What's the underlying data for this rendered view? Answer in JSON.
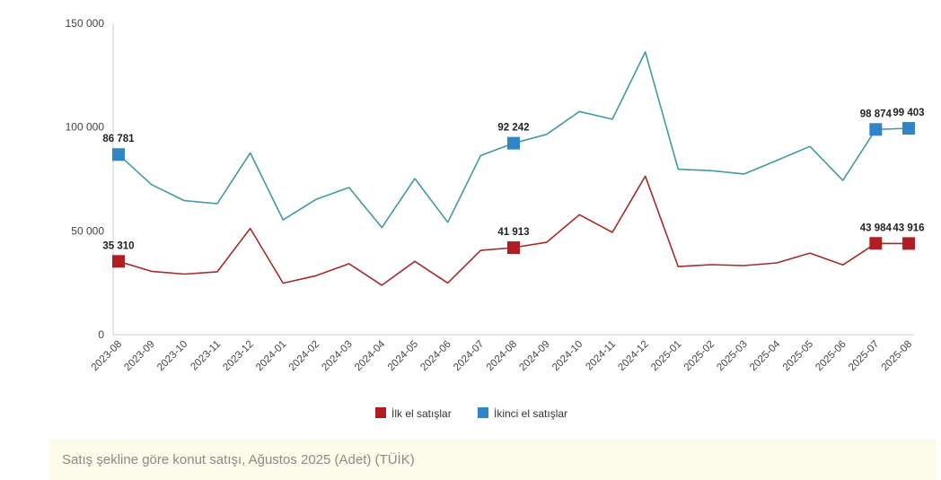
{
  "chart_data": {
    "type": "line",
    "categories": [
      "2023-08",
      "2023-09",
      "2023-10",
      "2023-11",
      "2023-12",
      "2024-01",
      "2024-02",
      "2024-03",
      "2024-04",
      "2024-05",
      "2024-06",
      "2024-07",
      "2024-08",
      "2024-09",
      "2024-10",
      "2024-11",
      "2024-12",
      "2025-01",
      "2025-02",
      "2025-03",
      "2025-04",
      "2025-05",
      "2025-06",
      "2025-07",
      "2025-08"
    ],
    "yticks": [
      "150 000",
      "100 000",
      "50 000",
      "0"
    ],
    "ytick_values": [
      150000,
      100000,
      50000,
      0
    ],
    "ylim": [
      0,
      150000
    ],
    "series": [
      {
        "name": "İlk el satışlar",
        "color": "#a52a2a",
        "marker_color": "#b01e24",
        "values": [
          35310,
          30500,
          29200,
          30300,
          51200,
          24800,
          28400,
          34200,
          23800,
          35300,
          24900,
          40600,
          41913,
          44500,
          57800,
          49300,
          76400,
          32800,
          33700,
          33300,
          34600,
          39300,
          33600,
          43984,
          43916
        ],
        "labeled_points": [
          {
            "index": 0,
            "label": "35 310"
          },
          {
            "index": 12,
            "label": "41 913"
          },
          {
            "index": 23,
            "label": "43 984"
          },
          {
            "index": 24,
            "label": "43 916"
          }
        ]
      },
      {
        "name": "İkinci el satışlar",
        "color": "#3f9ba1",
        "marker_color": "#2e86c8",
        "values": [
          86781,
          72300,
          64600,
          63100,
          87600,
          55300,
          65200,
          70900,
          51600,
          75200,
          54100,
          86300,
          92242,
          96500,
          107500,
          103800,
          136200,
          79700,
          79000,
          77400,
          84000,
          90700,
          74300,
          98874,
          99403
        ],
        "labeled_points": [
          {
            "index": 0,
            "label": "86 781"
          },
          {
            "index": 12,
            "label": "92 242"
          },
          {
            "index": 23,
            "label": "98 874"
          },
          {
            "index": 24,
            "label": "99 403"
          }
        ]
      }
    ],
    "legend_position": "bottom",
    "grid": false
  },
  "caption": "Satış şekline göre konut satışı, Ağustos 2025 (Adet) (TÜİK)"
}
